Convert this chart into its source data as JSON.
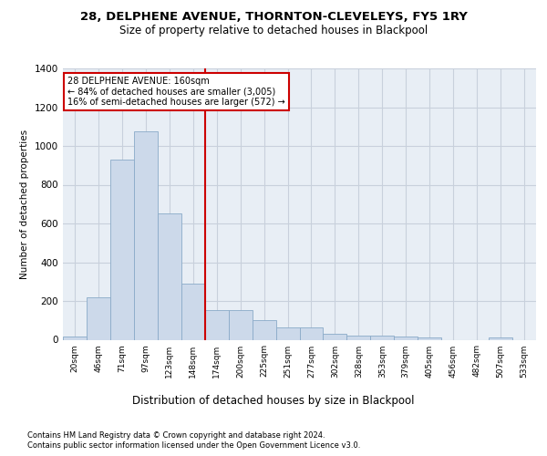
{
  "title_line1": "28, DELPHENE AVENUE, THORNTON-CLEVELEYS, FY5 1RY",
  "title_line2": "Size of property relative to detached houses in Blackpool",
  "xlabel": "Distribution of detached houses by size in Blackpool",
  "ylabel": "Number of detached properties",
  "footer_line1": "Contains HM Land Registry data © Crown copyright and database right 2024.",
  "footer_line2": "Contains public sector information licensed under the Open Government Licence v3.0.",
  "bar_labels": [
    "20sqm",
    "46sqm",
    "71sqm",
    "97sqm",
    "123sqm",
    "148sqm",
    "174sqm",
    "200sqm",
    "225sqm",
    "251sqm",
    "277sqm",
    "302sqm",
    "328sqm",
    "353sqm",
    "379sqm",
    "405sqm",
    "456sqm",
    "482sqm",
    "507sqm",
    "533sqm"
  ],
  "bar_values": [
    15,
    220,
    930,
    1075,
    650,
    290,
    155,
    155,
    100,
    65,
    65,
    30,
    20,
    20,
    15,
    10,
    0,
    0,
    10,
    0
  ],
  "bar_color": "#ccd9ea",
  "bar_edge_color": "#8aaac8",
  "vline_color": "#cc0000",
  "annotation_title": "28 DELPHENE AVENUE: 160sqm",
  "annotation_line1": "← 84% of detached houses are smaller (3,005)",
  "annotation_line2": "16% of semi-detached houses are larger (572) →",
  "annotation_box_color": "#ffffff",
  "annotation_box_edge": "#cc0000",
  "ylim": [
    0,
    1400
  ],
  "yticks": [
    0,
    200,
    400,
    600,
    800,
    1000,
    1200,
    1400
  ],
  "grid_color": "#c8d0dc",
  "bg_color": "#e8eef5"
}
